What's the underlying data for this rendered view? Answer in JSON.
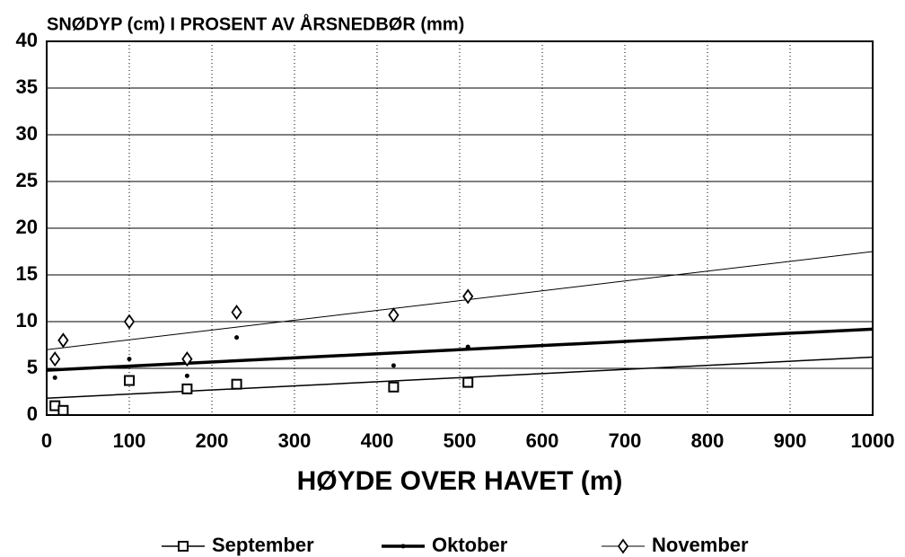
{
  "chart_data": {
    "type": "scatter",
    "title": "SNØDYP (cm) I PROSENT AV ÅRSNEDBØR (mm)",
    "xlabel": "HØYDE OVER HAVET (m)",
    "xlim": [
      0,
      1000
    ],
    "xticks": [
      0,
      100,
      200,
      300,
      400,
      500,
      600,
      700,
      800,
      900,
      1000
    ],
    "ylim": [
      0,
      40
    ],
    "yticks": [
      0,
      5,
      10,
      15,
      20,
      25,
      30,
      35,
      40
    ],
    "grid": true,
    "legend": "bottom",
    "series": [
      {
        "name": "September",
        "color": "#000000",
        "marker": "square",
        "line_width": 1.5,
        "x": [
          10,
          20,
          100,
          170,
          230,
          420,
          510
        ],
        "values": [
          1,
          0.5,
          3.7,
          2.8,
          3.3,
          3.0,
          3.5
        ],
        "trend": [
          1.8,
          6.2
        ]
      },
      {
        "name": "Oktober",
        "color": "#000000",
        "marker": "dot",
        "line_width": 3.5,
        "x": [
          10,
          100,
          170,
          230,
          420,
          510
        ],
        "values": [
          4,
          6,
          4.2,
          8.3,
          5.3,
          7.3
        ],
        "trend": [
          4.8,
          9.2
        ]
      },
      {
        "name": "November",
        "color": "#000000",
        "marker": "diamond",
        "line_width": 1,
        "x": [
          10,
          20,
          100,
          170,
          230,
          420,
          510
        ],
        "values": [
          6,
          8,
          10,
          6,
          11,
          10.7,
          12.7
        ],
        "trend": [
          7,
          17.5
        ]
      }
    ]
  }
}
